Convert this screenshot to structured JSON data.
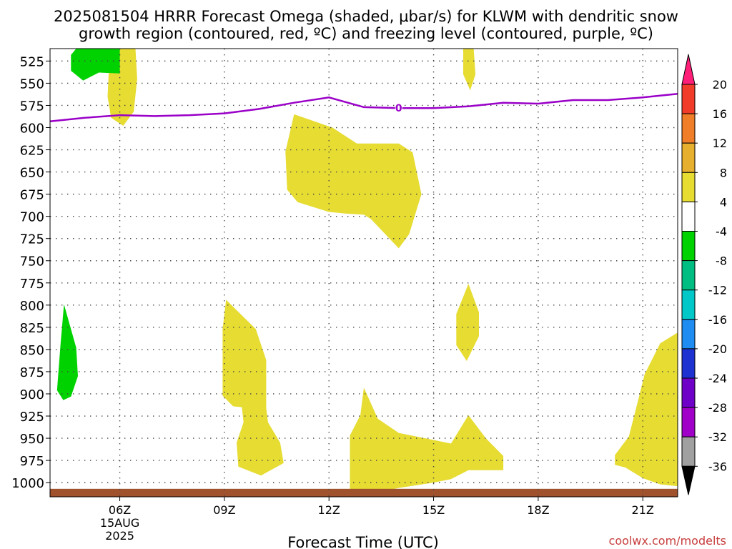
{
  "chart_data": {
    "type": "heatmap",
    "title_line1": "2025081504 HRRR Forecast Omega (shaded, μbar/s) for KLWM with dendritic snow",
    "title_line2": "growth region (contoured, red, ºC) and freezing level (contoured, purple, ºC)",
    "xlabel": "Forecast Time (UTC)",
    "credit": "coolwx.com/modelts",
    "x_ticks": [
      {
        "hour": 6,
        "label": "06Z",
        "sublabel1": "15AUG",
        "sublabel2": "2025"
      },
      {
        "hour": 9,
        "label": "09Z"
      },
      {
        "hour": 12,
        "label": "12Z"
      },
      {
        "hour": 15,
        "label": "15Z"
      },
      {
        "hour": 18,
        "label": "18Z"
      },
      {
        "hour": 21,
        "label": "21Z"
      }
    ],
    "xlim_hours": [
      4.0,
      22.0
    ],
    "y_ticks": [
      "525",
      "550",
      "575",
      "600",
      "625",
      "650",
      "675",
      "700",
      "725",
      "750",
      "775",
      "800",
      "825",
      "850",
      "875",
      "900",
      "925",
      "950",
      "975",
      "1000"
    ],
    "ylim_mb": [
      1016,
      511
    ],
    "grid": true,
    "freezing_level": {
      "label": "0",
      "color": "#9a00c8",
      "hours": [
        4.0,
        5.0,
        6.0,
        7.0,
        8.0,
        9.0,
        10.0,
        11.0,
        12.0,
        13.0,
        14.0,
        15.0,
        16.0,
        17.0,
        18.0,
        19.0,
        20.0,
        21.0,
        22.0
      ],
      "pressure": [
        593,
        589,
        586,
        587,
        586,
        584,
        579,
        572,
        566,
        577,
        578,
        578,
        576,
        572,
        573,
        569,
        569,
        566,
        562
      ]
    },
    "omega_regions": [
      {
        "level": "4 to 8",
        "color": "#e6dc32",
        "points": [
          [
            5.75,
            511
          ],
          [
            6.45,
            511
          ],
          [
            6.5,
            545
          ],
          [
            6.4,
            582
          ],
          [
            6.1,
            598
          ],
          [
            5.75,
            589
          ],
          [
            5.65,
            565
          ],
          [
            5.7,
            525
          ]
        ]
      },
      {
        "level": "4 to 8",
        "color": "#e6dc32",
        "points": [
          [
            15.85,
            511
          ],
          [
            16.15,
            511
          ],
          [
            16.2,
            540
          ],
          [
            16.05,
            558
          ],
          [
            15.85,
            540
          ]
        ]
      },
      {
        "level": "4 to 8",
        "color": "#e6dc32",
        "points": [
          [
            11.0,
            585
          ],
          [
            12.1,
            600
          ],
          [
            12.8,
            618
          ],
          [
            14.0,
            618
          ],
          [
            14.4,
            628
          ],
          [
            14.65,
            675
          ],
          [
            14.3,
            720
          ],
          [
            14.0,
            736
          ],
          [
            13.2,
            703
          ],
          [
            13.0,
            698
          ],
          [
            12.5,
            697
          ],
          [
            12.0,
            695
          ],
          [
            11.1,
            684
          ],
          [
            10.8,
            670
          ],
          [
            10.75,
            627
          ]
        ]
      },
      {
        "level": "4 to 8",
        "color": "#e6dc32",
        "points": [
          [
            9.05,
            794
          ],
          [
            9.9,
            827
          ],
          [
            10.2,
            862
          ],
          [
            10.2,
            916
          ],
          [
            10.25,
            932
          ],
          [
            10.6,
            955
          ],
          [
            10.7,
            978
          ],
          [
            10.05,
            992
          ],
          [
            9.4,
            982
          ],
          [
            9.35,
            955
          ],
          [
            9.55,
            932
          ],
          [
            9.5,
            915
          ],
          [
            9.25,
            914
          ],
          [
            8.95,
            902
          ],
          [
            8.95,
            827
          ]
        ]
      },
      {
        "level": "4 to 8",
        "color": "#e6dc32",
        "points": [
          [
            16.0,
            776
          ],
          [
            16.3,
            808
          ],
          [
            16.3,
            835
          ],
          [
            15.95,
            863
          ],
          [
            15.65,
            845
          ],
          [
            15.65,
            810
          ]
        ]
      },
      {
        "level": "4 to 8",
        "color": "#e6dc32",
        "points": [
          [
            13.0,
            893
          ],
          [
            13.4,
            928
          ],
          [
            14.0,
            944
          ],
          [
            15.0,
            952
          ],
          [
            15.5,
            956
          ],
          [
            16.0,
            924
          ],
          [
            16.5,
            950
          ],
          [
            17.0,
            970
          ],
          [
            17.0,
            986
          ],
          [
            16.5,
            986
          ],
          [
            16.0,
            986
          ],
          [
            15.5,
            996
          ],
          [
            15.0,
            1000
          ],
          [
            14.0,
            1006
          ],
          [
            13.5,
            1010
          ],
          [
            13.0,
            1016
          ],
          [
            12.6,
            1016
          ],
          [
            12.6,
            947
          ],
          [
            12.9,
            924
          ]
        ]
      },
      {
        "level": "4 to 8",
        "color": "#e6dc32",
        "points": [
          [
            22.0,
            831
          ],
          [
            21.5,
            843
          ],
          [
            21.05,
            878
          ],
          [
            20.9,
            902
          ],
          [
            20.6,
            948
          ],
          [
            20.2,
            969
          ],
          [
            20.2,
            980
          ],
          [
            20.5,
            983
          ],
          [
            21.0,
            995
          ],
          [
            21.5,
            1002
          ],
          [
            22.0,
            1004
          ]
        ]
      },
      {
        "level": "-8 to -4",
        "color": "#00d200",
        "points": [
          [
            4.75,
            511
          ],
          [
            6.0,
            511
          ],
          [
            6.0,
            539
          ],
          [
            5.4,
            538
          ],
          [
            4.95,
            547
          ],
          [
            4.6,
            536
          ],
          [
            4.6,
            518
          ]
        ]
      },
      {
        "level": "-8 to -4",
        "color": "#00d200",
        "points": [
          [
            4.4,
            799
          ],
          [
            4.75,
            848
          ],
          [
            4.8,
            880
          ],
          [
            4.6,
            903
          ],
          [
            4.38,
            907
          ],
          [
            4.2,
            896
          ],
          [
            4.3,
            845
          ]
        ]
      }
    ],
    "surface_terrain": {
      "color": "#a0522d",
      "from_mb": 1007,
      "to_mb": 1016
    },
    "colorbar": {
      "labels": [
        "20",
        "16",
        "12",
        "8",
        "4",
        "-4",
        "-8",
        "-12",
        "-16",
        "-20",
        "-24",
        "-28",
        "-32",
        "-36"
      ],
      "colors": [
        "#ff1e78",
        "#f03c28",
        "#f07d28",
        "#e6af2d",
        "#e6dc32",
        "#ffffff",
        "#00d200",
        "#00be82",
        "#00c8c8",
        "#1e8cf0",
        "#1e32d2",
        "#6e00c8",
        "#a000c8",
        "#a0a0a0",
        "#000000"
      ]
    }
  }
}
